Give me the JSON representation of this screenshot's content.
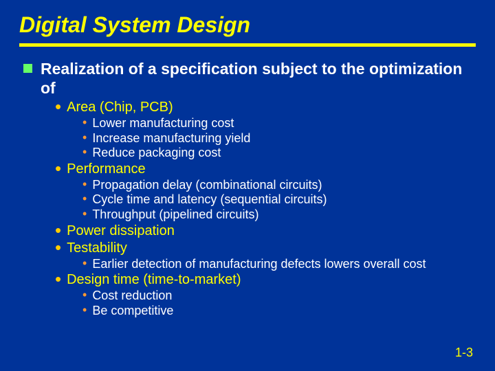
{
  "colors": {
    "background": "#003399",
    "title": "#ffff00",
    "rule": "#ffff00",
    "l1_bullet": "#66ff66",
    "l1_text": "#ffffff",
    "l2_bullet": "#ffcc00",
    "l2_text": "#ffff00",
    "l3_bullet": "#ff9933",
    "l3_text": "#ffffff",
    "pagenum": "#ffff00"
  },
  "title": "Digital System Design",
  "l1_text": "Realization of a specification subject to the optimization of",
  "items": [
    {
      "label": "Area (Chip, PCB)",
      "sub": [
        "Lower manufacturing cost",
        "Increase manufacturing yield",
        "Reduce packaging cost"
      ]
    },
    {
      "label": "Performance",
      "sub": [
        "Propagation delay (combinational circuits)",
        "Cycle time and latency (sequential circuits)",
        "Throughput (pipelined circuits)"
      ]
    },
    {
      "label": "Power dissipation",
      "sub": []
    },
    {
      "label": "Testability",
      "sub": [
        "Earlier detection of manufacturing defects lowers overall cost"
      ]
    },
    {
      "label": "Design time (time-to-market)",
      "sub": [
        "Cost reduction",
        "Be competitive"
      ]
    }
  ],
  "pagenum": "1-3"
}
